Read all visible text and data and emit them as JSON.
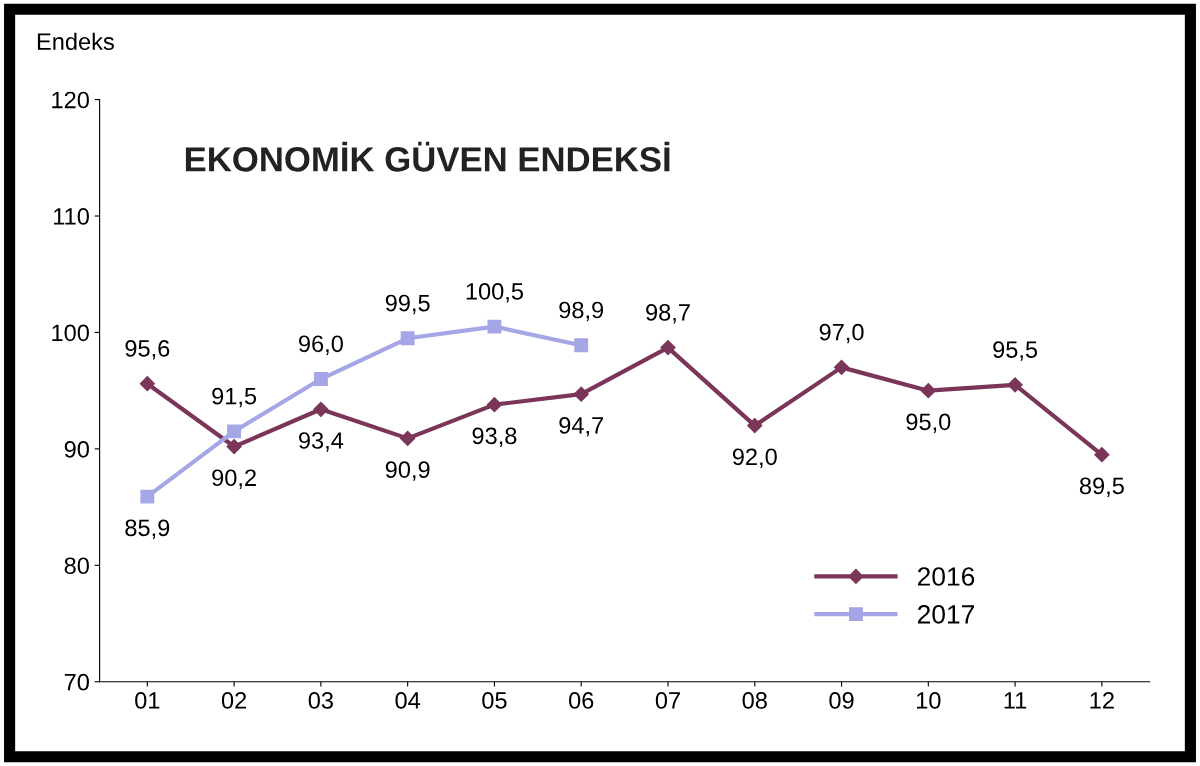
{
  "chart_data": {
    "type": "line",
    "title": "EKONOMİK GÜVEN ENDEKSİ",
    "ylabel": "Endeks",
    "categories": [
      "01",
      "02",
      "03",
      "04",
      "05",
      "06",
      "07",
      "08",
      "09",
      "10",
      "11",
      "12"
    ],
    "series": [
      {
        "name": "2016",
        "color": "#7b3558",
        "marker": "diamond",
        "values": [
          95.6,
          90.2,
          93.4,
          90.9,
          93.8,
          94.7,
          98.7,
          92.0,
          97.0,
          95.0,
          95.5,
          89.5
        ],
        "value_labels": [
          "95,6",
          "90,2",
          "93,4",
          "90,9",
          "93,8",
          "94,7",
          "98,7",
          "92,0",
          "97,0",
          "95,0",
          "95,5",
          "89,5"
        ]
      },
      {
        "name": "2017",
        "color": "#a4a6e6",
        "marker": "square",
        "values": [
          85.9,
          91.5,
          96.0,
          99.5,
          100.5,
          98.9,
          null,
          null,
          null,
          null,
          null,
          null
        ],
        "value_labels": [
          "85,9",
          "91,5",
          "96,0",
          "99,5",
          "100,5",
          "98,9",
          null,
          null,
          null,
          null,
          null,
          null
        ]
      }
    ],
    "ylim": [
      70,
      120
    ],
    "yticks": [
      70,
      80,
      90,
      100,
      110,
      120
    ],
    "grid": false,
    "legend": "bottom right"
  }
}
